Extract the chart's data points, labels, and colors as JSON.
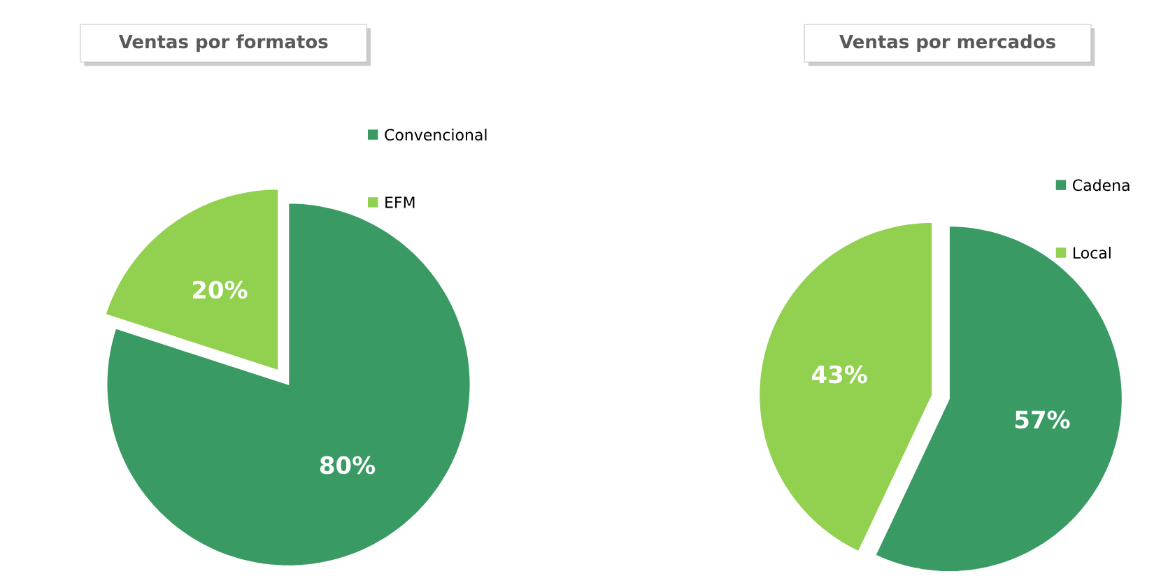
{
  "chart_data": [
    {
      "type": "pie",
      "title": "Ventas por formatos",
      "categories": [
        "Convencional",
        "EFM"
      ],
      "values": [
        80,
        20
      ],
      "colors": [
        "#3a9a64",
        "#92d050"
      ],
      "value_labels": [
        "80%",
        "20%"
      ],
      "legend": "top right"
    },
    {
      "type": "pie",
      "title": "Ventas por mercados",
      "categories": [
        "Cadena",
        "Local"
      ],
      "values": [
        57,
        43
      ],
      "colors": [
        "#3a9a64",
        "#92d050"
      ],
      "value_labels": [
        "57%",
        "43%"
      ],
      "legend": "top right"
    }
  ]
}
